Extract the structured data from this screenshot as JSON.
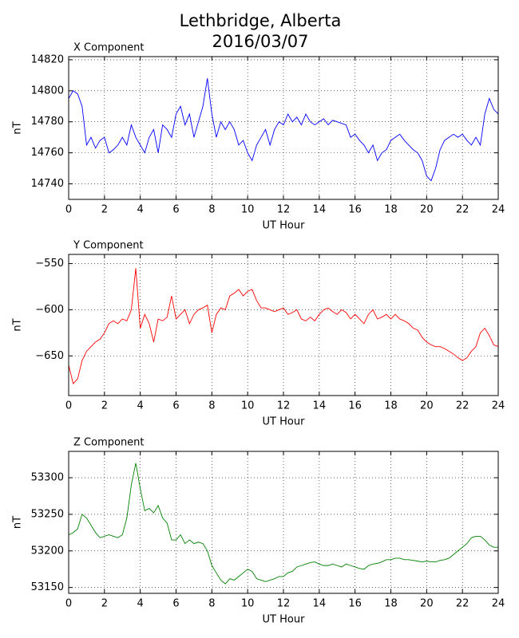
{
  "title": [
    "Lethbridge, Alberta",
    "2016/03/07"
  ],
  "chart_data": [
    {
      "type": "line",
      "title": "X Component",
      "xlabel": "UT Hour",
      "ylabel": "nT",
      "color": "#0000ff",
      "grid": true,
      "xlim": [
        0,
        24
      ],
      "xticks": [
        0,
        2,
        4,
        6,
        8,
        10,
        12,
        14,
        16,
        18,
        20,
        22,
        24
      ],
      "ylim": [
        14730,
        14822
      ],
      "yticks": [
        14740,
        14760,
        14780,
        14800,
        14820
      ],
      "x": [
        0,
        0.25,
        0.5,
        0.75,
        1,
        1.25,
        1.5,
        1.75,
        2,
        2.25,
        2.5,
        2.75,
        3,
        3.25,
        3.5,
        3.75,
        4,
        4.25,
        4.5,
        4.75,
        5,
        5.25,
        5.5,
        5.75,
        6,
        6.25,
        6.5,
        6.75,
        7,
        7.25,
        7.5,
        7.75,
        8,
        8.25,
        8.5,
        8.75,
        9,
        9.25,
        9.5,
        9.75,
        10,
        10.25,
        10.5,
        10.75,
        11,
        11.25,
        11.5,
        11.75,
        12,
        12.25,
        12.5,
        12.75,
        13,
        13.25,
        13.5,
        13.75,
        14,
        14.25,
        14.5,
        14.75,
        15,
        15.25,
        15.5,
        15.75,
        16,
        16.25,
        16.5,
        16.75,
        17,
        17.25,
        17.5,
        17.75,
        18,
        18.25,
        18.5,
        18.75,
        19,
        19.25,
        19.5,
        19.75,
        20,
        20.25,
        20.5,
        20.75,
        21,
        21.25,
        21.5,
        21.75,
        22,
        22.25,
        22.5,
        22.75,
        23,
        23.25,
        23.5,
        23.75,
        24
      ],
      "values": [
        14795,
        14800,
        14798,
        14790,
        14765,
        14770,
        14763,
        14768,
        14770,
        14760,
        14762,
        14765,
        14770,
        14765,
        14778,
        14770,
        14765,
        14760,
        14770,
        14775,
        14760,
        14778,
        14775,
        14770,
        14785,
        14790,
        14778,
        14785,
        14770,
        14780,
        14790,
        14808,
        14785,
        14770,
        14780,
        14775,
        14780,
        14775,
        14765,
        14768,
        14760,
        14755,
        14765,
        14770,
        14775,
        14765,
        14775,
        14780,
        14778,
        14785,
        14780,
        14783,
        14778,
        14785,
        14780,
        14778,
        14780,
        14782,
        14778,
        14781,
        14780,
        14779,
        14778,
        14770,
        14772,
        14768,
        14765,
        14760,
        14765,
        14755,
        14760,
        14762,
        14768,
        14770,
        14772,
        14768,
        14765,
        14762,
        14760,
        14755,
        14745,
        14742,
        14750,
        14762,
        14768,
        14770,
        14772,
        14770,
        14772,
        14768,
        14765,
        14770,
        14765,
        14785,
        14795,
        14788,
        14785
      ]
    },
    {
      "type": "line",
      "title": "Y Component",
      "xlabel": "UT Hour",
      "ylabel": "nT",
      "color": "#ff0000",
      "grid": true,
      "xlim": [
        0,
        24
      ],
      "xticks": [
        0,
        2,
        4,
        6,
        8,
        10,
        12,
        14,
        16,
        18,
        20,
        22,
        24
      ],
      "ylim": [
        -693,
        -540
      ],
      "yticks": [
        {
          "value": -650,
          "label": "−650"
        },
        {
          "value": -600,
          "label": "−600"
        },
        {
          "value": -550,
          "label": "−550"
        }
      ],
      "x": [
        0,
        0.25,
        0.5,
        0.75,
        1,
        1.25,
        1.5,
        1.75,
        2,
        2.25,
        2.5,
        2.75,
        3,
        3.25,
        3.5,
        3.75,
        4,
        4.25,
        4.5,
        4.75,
        5,
        5.25,
        5.5,
        5.75,
        6,
        6.25,
        6.5,
        6.75,
        7,
        7.25,
        7.5,
        7.75,
        8,
        8.25,
        8.5,
        8.75,
        9,
        9.25,
        9.5,
        9.75,
        10,
        10.25,
        10.5,
        10.75,
        11,
        11.25,
        11.5,
        11.75,
        12,
        12.25,
        12.5,
        12.75,
        13,
        13.25,
        13.5,
        13.75,
        14,
        14.25,
        14.5,
        14.75,
        15,
        15.25,
        15.5,
        15.75,
        16,
        16.25,
        16.5,
        16.75,
        17,
        17.25,
        17.5,
        17.75,
        18,
        18.25,
        18.5,
        18.75,
        19,
        19.25,
        19.5,
        19.75,
        20,
        20.25,
        20.5,
        20.75,
        21,
        21.25,
        21.5,
        21.75,
        22,
        22.25,
        22.5,
        22.75,
        23,
        23.25,
        23.5,
        23.75,
        24
      ],
      "values": [
        -660,
        -680,
        -675,
        -655,
        -645,
        -640,
        -635,
        -632,
        -625,
        -615,
        -612,
        -615,
        -610,
        -612,
        -600,
        -555,
        -620,
        -605,
        -615,
        -635,
        -610,
        -612,
        -608,
        -585,
        -610,
        -605,
        -600,
        -615,
        -605,
        -600,
        -598,
        -595,
        -625,
        -605,
        -598,
        -600,
        -585,
        -582,
        -578,
        -585,
        -580,
        -578,
        -590,
        -598,
        -598,
        -600,
        -602,
        -600,
        -598,
        -605,
        -603,
        -600,
        -610,
        -612,
        -608,
        -612,
        -605,
        -600,
        -598,
        -602,
        -605,
        -600,
        -603,
        -610,
        -605,
        -610,
        -615,
        -605,
        -600,
        -610,
        -608,
        -605,
        -610,
        -605,
        -610,
        -612,
        -615,
        -620,
        -622,
        -630,
        -635,
        -638,
        -640,
        -640,
        -642,
        -645,
        -648,
        -652,
        -655,
        -652,
        -645,
        -640,
        -625,
        -620,
        -628,
        -638,
        -640
      ]
    },
    {
      "type": "line",
      "title": "Z Component",
      "xlabel": "UT Hour",
      "ylabel": "nT",
      "color": "#008000",
      "grid": true,
      "xlim": [
        0,
        24
      ],
      "xticks": [
        0,
        2,
        4,
        6,
        8,
        10,
        12,
        14,
        16,
        18,
        20,
        22,
        24
      ],
      "ylim": [
        53142,
        53336
      ],
      "yticks": [
        53150,
        53200,
        53250,
        53300
      ],
      "x": [
        0,
        0.25,
        0.5,
        0.75,
        1,
        1.25,
        1.5,
        1.75,
        2,
        2.25,
        2.5,
        2.75,
        3,
        3.25,
        3.5,
        3.75,
        4,
        4.25,
        4.5,
        4.75,
        5,
        5.25,
        5.5,
        5.75,
        6,
        6.25,
        6.5,
        6.75,
        7,
        7.25,
        7.5,
        7.75,
        8,
        8.25,
        8.5,
        8.75,
        9,
        9.25,
        9.5,
        9.75,
        10,
        10.25,
        10.5,
        10.75,
        11,
        11.25,
        11.5,
        11.75,
        12,
        12.25,
        12.5,
        12.75,
        13,
        13.25,
        13.5,
        13.75,
        14,
        14.25,
        14.5,
        14.75,
        15,
        15.25,
        15.5,
        15.75,
        16,
        16.25,
        16.5,
        16.75,
        17,
        17.25,
        17.5,
        17.75,
        18,
        18.25,
        18.5,
        18.75,
        19,
        19.25,
        19.5,
        19.75,
        20,
        20.25,
        20.5,
        20.75,
        21,
        21.25,
        21.5,
        21.75,
        22,
        22.25,
        22.5,
        22.75,
        23,
        23.25,
        23.5,
        23.75,
        24
      ],
      "values": [
        53222,
        53225,
        53230,
        53250,
        53245,
        53235,
        53225,
        53218,
        53220,
        53222,
        53220,
        53218,
        53222,
        53245,
        53290,
        53320,
        53285,
        53255,
        53258,
        53252,
        53262,
        53245,
        53238,
        53215,
        53215,
        53222,
        53210,
        53215,
        53210,
        53212,
        53210,
        53200,
        53180,
        53170,
        53160,
        53155,
        53162,
        53160,
        53165,
        53170,
        53175,
        53172,
        53162,
        53160,
        53158,
        53160,
        53162,
        53165,
        53165,
        53170,
        53172,
        53178,
        53180,
        53182,
        53184,
        53185,
        53182,
        53180,
        53180,
        53182,
        53180,
        53178,
        53182,
        53180,
        53178,
        53176,
        53175,
        53180,
        53182,
        53183,
        53185,
        53188,
        53188,
        53190,
        53190,
        53188,
        53188,
        53187,
        53186,
        53185,
        53186,
        53185,
        53185,
        53187,
        53188,
        53190,
        53195,
        53200,
        53205,
        53210,
        53218,
        53220,
        53220,
        53215,
        53208,
        53205,
        53205
      ]
    }
  ]
}
